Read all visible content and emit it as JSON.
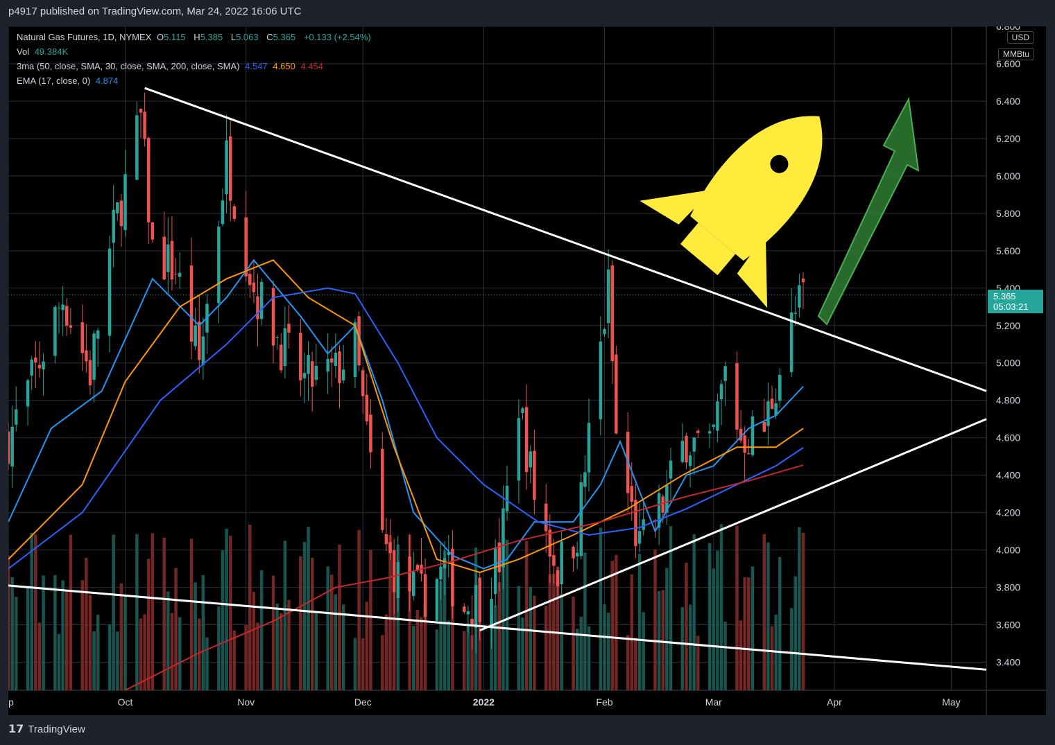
{
  "header": {
    "published": "p4917 published on TradingView.com, Mar 24, 2022 16:06 UTC"
  },
  "legend": {
    "symbol": "Natural Gas Futures, 1D, NYMEX",
    "o_label": "O",
    "o": "5.115",
    "h_label": "H",
    "h": "5.385",
    "l_label": "L",
    "l": "5.063",
    "c_label": "C",
    "c": "5.365",
    "change": "+0.133 (+2.54%)",
    "vol_label": "Vol",
    "vol": "49.384K",
    "ma_label": "3ma (50, close, SMA, 30, close, SMA, 200, close, SMA)",
    "ma1": "4.547",
    "ma2": "4.650",
    "ma3": "4.454",
    "ema_label": "EMA (17, close, 0)",
    "ema": "4.874"
  },
  "axis": {
    "currency": "USD",
    "unit": "MMBtu"
  },
  "price_tag": {
    "price": "5.365",
    "countdown": "05:03:21"
  },
  "footer": {
    "brand": "TradingView"
  },
  "colors": {
    "up": "#26a69a",
    "down": "#ef5350",
    "ema": "#2196f3",
    "ma1": "#2962ff",
    "ma2": "#ff9800",
    "ma3": "#c62828",
    "trendline": "#ffffff",
    "rocket": "#ffeb3b",
    "arrow": "#2e7d32"
  },
  "chart_data": {
    "type": "candlestick",
    "y_ticks": [
      "6.800",
      "6.600",
      "6.400",
      "6.200",
      "6.000",
      "5.800",
      "5.600",
      "5.400",
      "5.200",
      "5.000",
      "4.800",
      "4.600",
      "4.400",
      "4.200",
      "4.000",
      "3.800",
      "3.600",
      "3.400"
    ],
    "ylim": [
      3.25,
      6.8
    ],
    "x_labels": [
      {
        "label": "ep",
        "date": "2021-09-01"
      },
      {
        "label": "Oct",
        "date": "2021-10-01"
      },
      {
        "label": "Nov",
        "date": "2021-11-01"
      },
      {
        "label": "Dec",
        "date": "2021-12-01"
      },
      {
        "label": "2022",
        "date": "2022-01-01"
      },
      {
        "label": "Feb",
        "date": "2022-02-01"
      },
      {
        "label": "Mar",
        "date": "2022-03-01"
      },
      {
        "label": "Apr",
        "date": "2022-04-01"
      },
      {
        "label": "May",
        "date": "2022-05-01"
      }
    ],
    "xlim": [
      "2021-09-01",
      "2022-05-10"
    ],
    "close_anchors": [
      {
        "date": "2021-09-01",
        "close": 4.6
      },
      {
        "date": "2021-09-08",
        "close": 4.95
      },
      {
        "date": "2021-09-15",
        "close": 5.35
      },
      {
        "date": "2021-09-22",
        "close": 4.95
      },
      {
        "date": "2021-09-28",
        "close": 5.7
      },
      {
        "date": "2021-10-05",
        "close": 6.3
      },
      {
        "date": "2021-10-08",
        "close": 5.6
      },
      {
        "date": "2021-10-14",
        "close": 5.5
      },
      {
        "date": "2021-10-20",
        "close": 5.0
      },
      {
        "date": "2021-10-27",
        "close": 6.1
      },
      {
        "date": "2021-11-03",
        "close": 5.4
      },
      {
        "date": "2021-11-10",
        "close": 5.1
      },
      {
        "date": "2021-11-16",
        "close": 4.9
      },
      {
        "date": "2021-11-24",
        "close": 4.95
      },
      {
        "date": "2021-11-29",
        "close": 5.1
      },
      {
        "date": "2021-12-02",
        "close": 4.6
      },
      {
        "date": "2021-12-06",
        "close": 4.05
      },
      {
        "date": "2021-12-10",
        "close": 3.85
      },
      {
        "date": "2021-12-16",
        "close": 3.75
      },
      {
        "date": "2021-12-22",
        "close": 3.9
      },
      {
        "date": "2021-12-27",
        "close": 3.7
      },
      {
        "date": "2021-12-31",
        "close": 3.75
      },
      {
        "date": "2022-01-05",
        "close": 3.95
      },
      {
        "date": "2022-01-10",
        "close": 4.8
      },
      {
        "date": "2022-01-14",
        "close": 4.3
      },
      {
        "date": "2022-01-20",
        "close": 3.9
      },
      {
        "date": "2022-01-25",
        "close": 4.1
      },
      {
        "date": "2022-01-28",
        "close": 4.6
      },
      {
        "date": "2022-02-02",
        "close": 5.4
      },
      {
        "date": "2022-02-04",
        "close": 4.6
      },
      {
        "date": "2022-02-10",
        "close": 4.0
      },
      {
        "date": "2022-02-16",
        "close": 4.25
      },
      {
        "date": "2022-02-22",
        "close": 4.6
      },
      {
        "date": "2022-02-28",
        "close": 4.5
      },
      {
        "date": "2022-03-04",
        "close": 4.95
      },
      {
        "date": "2022-03-08",
        "close": 4.6
      },
      {
        "date": "2022-03-14",
        "close": 4.65
      },
      {
        "date": "2022-03-17",
        "close": 4.9
      },
      {
        "date": "2022-03-21",
        "close": 5.2
      },
      {
        "date": "2022-03-24",
        "close": 5.365
      }
    ],
    "ma_lines": [
      {
        "name": "EMA 17",
        "points": [
          [
            "2021-09-01",
            4.15
          ],
          [
            "2021-09-12",
            4.65
          ],
          [
            "2021-09-25",
            4.85
          ],
          [
            "2021-10-08",
            5.45
          ],
          [
            "2021-10-20",
            5.2
          ],
          [
            "2021-10-27",
            5.35
          ],
          [
            "2021-11-03",
            5.55
          ],
          [
            "2021-11-15",
            5.25
          ],
          [
            "2021-11-22",
            5.05
          ],
          [
            "2021-11-29",
            5.2
          ],
          [
            "2021-12-06",
            4.8
          ],
          [
            "2021-12-14",
            4.2
          ],
          [
            "2021-12-24",
            3.97
          ],
          [
            "2022-01-01",
            3.9
          ],
          [
            "2022-01-07",
            3.95
          ],
          [
            "2022-01-14",
            4.15
          ],
          [
            "2022-01-24",
            4.15
          ],
          [
            "2022-01-31",
            4.35
          ],
          [
            "2022-02-05",
            4.58
          ],
          [
            "2022-02-14",
            4.1
          ],
          [
            "2022-02-22",
            4.4
          ],
          [
            "2022-03-01",
            4.45
          ],
          [
            "2022-03-10",
            4.65
          ],
          [
            "2022-03-17",
            4.72
          ],
          [
            "2022-03-24",
            4.874
          ]
        ]
      },
      {
        "name": "SMA 30",
        "points": [
          [
            "2021-09-01",
            3.95
          ],
          [
            "2021-09-20",
            4.35
          ],
          [
            "2021-10-01",
            4.9
          ],
          [
            "2021-10-15",
            5.3
          ],
          [
            "2021-10-27",
            5.45
          ],
          [
            "2021-11-08",
            5.55
          ],
          [
            "2021-11-17",
            5.35
          ],
          [
            "2021-11-29",
            5.2
          ],
          [
            "2021-12-09",
            4.55
          ],
          [
            "2021-12-20",
            3.95
          ],
          [
            "2021-12-31",
            3.88
          ],
          [
            "2022-01-10",
            3.95
          ],
          [
            "2022-01-24",
            4.08
          ],
          [
            "2022-02-07",
            4.22
          ],
          [
            "2022-02-21",
            4.4
          ],
          [
            "2022-03-07",
            4.55
          ],
          [
            "2022-03-17",
            4.55
          ],
          [
            "2022-03-24",
            4.65
          ]
        ]
      },
      {
        "name": "SMA 50",
        "points": [
          [
            "2021-09-01",
            3.9
          ],
          [
            "2021-09-20",
            4.2
          ],
          [
            "2021-10-10",
            4.8
          ],
          [
            "2021-10-27",
            5.1
          ],
          [
            "2021-11-08",
            5.35
          ],
          [
            "2021-11-22",
            5.4
          ],
          [
            "2021-11-29",
            5.37
          ],
          [
            "2021-12-10",
            5.0
          ],
          [
            "2021-12-20",
            4.6
          ],
          [
            "2022-01-01",
            4.35
          ],
          [
            "2022-01-15",
            4.15
          ],
          [
            "2022-01-28",
            4.08
          ],
          [
            "2022-02-10",
            4.12
          ],
          [
            "2022-02-22",
            4.22
          ],
          [
            "2022-03-07",
            4.35
          ],
          [
            "2022-03-17",
            4.45
          ],
          [
            "2022-03-24",
            4.547
          ]
        ]
      },
      {
        "name": "SMA 200",
        "points": [
          [
            "2021-10-01",
            3.25
          ],
          [
            "2021-10-20",
            3.45
          ],
          [
            "2021-11-08",
            3.62
          ],
          [
            "2021-11-24",
            3.8
          ],
          [
            "2021-12-07",
            3.85
          ],
          [
            "2021-12-24",
            3.94
          ],
          [
            "2022-01-10",
            4.05
          ],
          [
            "2022-01-31",
            4.15
          ],
          [
            "2022-02-21",
            4.28
          ],
          [
            "2022-03-10",
            4.37
          ],
          [
            "2022-03-24",
            4.454
          ]
        ]
      }
    ],
    "trendlines": [
      {
        "from": [
          "2021-10-06",
          6.47
        ],
        "to": [
          "2022-05-10",
          4.85
        ]
      },
      {
        "from": [
          "2021-12-31",
          3.57
        ],
        "to": [
          "2022-05-10",
          4.7
        ]
      },
      {
        "from": [
          "2021-09-01",
          3.81
        ],
        "to": [
          "2022-05-10",
          3.36
        ]
      }
    ]
  }
}
